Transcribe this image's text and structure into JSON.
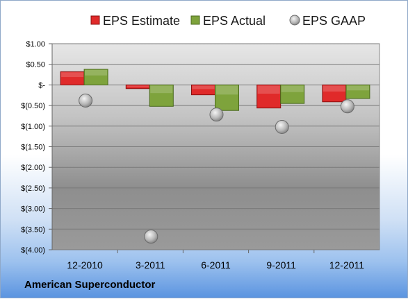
{
  "company": "American Superconductor",
  "chart_data": {
    "type": "bar",
    "categories": [
      "12-2010",
      "3-2011",
      "6-2011",
      "9-2011",
      "12-2011"
    ],
    "series": [
      {
        "name": "EPS Estimate",
        "kind": "bar",
        "color": "#e02a2a",
        "values": [
          0.32,
          -0.09,
          -0.24,
          -0.56,
          -0.41
        ]
      },
      {
        "name": "EPS Actual",
        "kind": "bar",
        "color": "#7ea33c",
        "values": [
          0.38,
          -0.52,
          -0.62,
          -0.45,
          -0.33
        ]
      },
      {
        "name": "EPS GAAP",
        "kind": "marker",
        "color": "#b5b5b5",
        "values": [
          -0.38,
          -3.68,
          -0.72,
          -1.02,
          -0.52
        ]
      }
    ],
    "y_ticks": [
      "$1.00",
      "$0.50",
      "$-",
      "$(0.50)",
      "$(1.00)",
      "$(1.50)",
      "$(2.00)",
      "$(2.50)",
      "$(3.00)",
      "$(3.50)",
      "$(4.00)"
    ],
    "y_tick_values": [
      1.0,
      0.5,
      0,
      -0.5,
      -1.0,
      -1.5,
      -2.0,
      -2.5,
      -3.0,
      -3.5,
      -4.0
    ],
    "ylim": [
      -4.0,
      1.0
    ],
    "grid": true,
    "legend_position": "top"
  }
}
